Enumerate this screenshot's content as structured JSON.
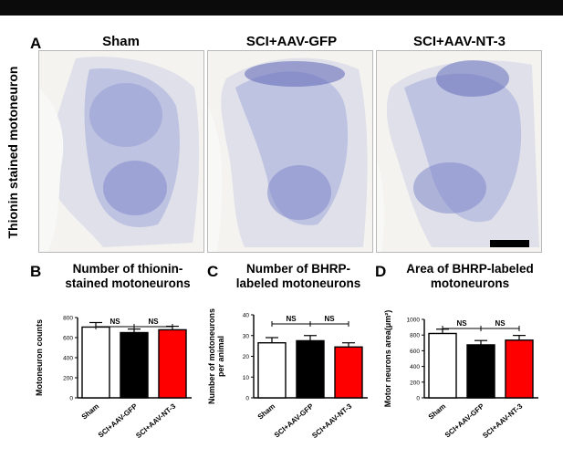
{
  "panel_a": {
    "letter": "A",
    "y_label": "Thionin stained motoneuron",
    "columns": [
      "Sham",
      "SCI+AAV-GFP",
      "SCI+AAV-NT-3"
    ]
  },
  "chart_data": [
    {
      "letter": "B",
      "type": "bar",
      "title_lines": [
        "Number of thionin-",
        "stained motoneurons"
      ],
      "ylabel_lines": [
        "Motoneuron counts"
      ],
      "categories": [
        "Sham",
        "SCI+AAV-GFP",
        "SCI+AAV-NT-3"
      ],
      "values": [
        705,
        650,
        678
      ],
      "errors": [
        45,
        35,
        35
      ],
      "ylim": [
        0,
        800
      ],
      "yticks": [
        0,
        200,
        400,
        600,
        800
      ],
      "sig": [
        "NS",
        "NS"
      ]
    },
    {
      "letter": "C",
      "type": "bar",
      "title_lines": [
        "Number of  BHRP-",
        "labeled motoneurons"
      ],
      "ylabel_lines": [
        "Number of motoneurons",
        "per animal"
      ],
      "categories": [
        "Sham",
        "SCI+AAV-GFP",
        "SCI+AAV-NT-3"
      ],
      "values": [
        26.5,
        27.5,
        24.5
      ],
      "errors": [
        2.5,
        2.5,
        2.0
      ],
      "ylim": [
        0,
        40
      ],
      "yticks": [
        0,
        10,
        20,
        30,
        40
      ],
      "sig": [
        "NS",
        "NS"
      ]
    },
    {
      "letter": "D",
      "type": "bar",
      "title_lines": [
        "Area of  BHRP-labeled",
        "motoneurons"
      ],
      "ylabel_lines": [
        "Motor neurons area(μm²)"
      ],
      "categories": [
        "Sham",
        "SCI+AAV-GFP",
        "SCI+AAV-NT-3"
      ],
      "values": [
        820,
        675,
        735
      ],
      "errors": [
        55,
        55,
        60
      ],
      "ylim": [
        0,
        1000
      ],
      "yticks": [
        0,
        200,
        400,
        600,
        800,
        1000
      ],
      "sig": [
        "NS",
        "NS"
      ]
    }
  ],
  "colors": {
    "bar_fills": [
      "#ffffff",
      "#000000",
      "#ff0000"
    ],
    "stain": "#3b4aa8"
  }
}
